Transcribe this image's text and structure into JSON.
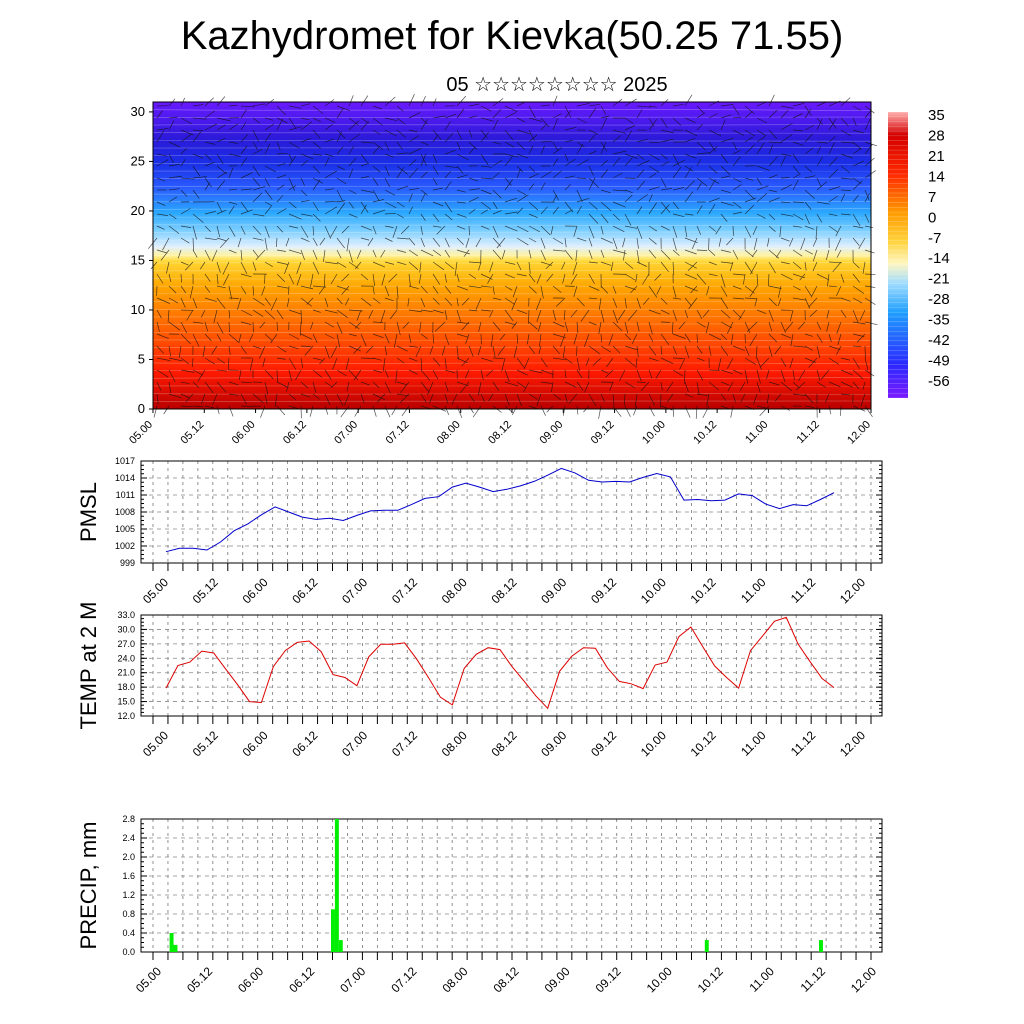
{
  "header": {
    "title": "Kazhydromet for Kievka(50.25 71.55)",
    "subtitle": "05 ☆☆☆☆☆☆☆☆ 2025"
  },
  "time_labels": [
    "05.00",
    "05.12",
    "06.00",
    "06.12",
    "07.00",
    "07.12",
    "08.00",
    "08.12",
    "09.00",
    "09.12",
    "10.00",
    "10.12",
    "11.00",
    "11.12",
    "12.00"
  ],
  "chart_data": [
    {
      "type": "heatmap",
      "xlabel": "",
      "ylabel": "",
      "y_ticks": [
        0,
        5,
        10,
        15,
        20,
        25,
        30
      ],
      "ylim": [
        0,
        31
      ],
      "colorbar_labels": [
        "35",
        "28",
        "21",
        "14",
        "7",
        "0",
        "-7",
        "-14",
        "-21",
        "-28",
        "-35",
        "-42",
        "-49",
        "-56"
      ],
      "colors": {
        "warm": "#ff0000",
        "mid": "#ffee55",
        "cold": "#1a33ff",
        "top": "#7a1aff"
      }
    },
    {
      "type": "line",
      "ylabel": "PMSL",
      "y_ticks": [
        "999",
        "1002",
        "1005",
        "1008",
        "1011",
        "1014",
        "1017"
      ],
      "ylim": [
        999,
        1017
      ],
      "series": [
        {
          "color": "#0000cc",
          "values": [
            1001.0,
            1001.6,
            1001.6,
            1001.3,
            1002.7,
            1004.7,
            1005.9,
            1007.5,
            1008.9,
            1008.0,
            1007.1,
            1006.7,
            1006.9,
            1006.5,
            1007.4,
            1008.2,
            1008.3,
            1008.3,
            1009.3,
            1010.4,
            1010.7,
            1012.4,
            1013.1,
            1012.4,
            1011.6,
            1012.0,
            1012.6,
            1013.4,
            1014.5,
            1015.7,
            1014.9,
            1013.6,
            1013.3,
            1013.4,
            1013.3,
            1014.1,
            1014.8,
            1014.2,
            1010.1,
            1010.2,
            1010.0,
            1010.1,
            1011.2,
            1010.9,
            1009.4,
            1008.6,
            1009.3,
            1009.1,
            1010.2,
            1011.4
          ]
        }
      ]
    },
    {
      "type": "line",
      "ylabel": "TEMP at 2 M",
      "y_ticks": [
        "12.0",
        "15.0",
        "18.0",
        "21.0",
        "24.0",
        "27.0",
        "30.0",
        "33.0"
      ],
      "ylim": [
        12,
        33
      ],
      "series": [
        {
          "color": "#dd0000",
          "values": [
            17.8,
            22.5,
            23.2,
            25.5,
            25.1,
            21.8,
            18.5,
            15.0,
            14.8,
            22.3,
            25.6,
            27.3,
            27.6,
            25.4,
            20.6,
            20.0,
            18.3,
            24.3,
            26.9,
            26.9,
            27.2,
            23.9,
            20.0,
            15.9,
            14.3,
            21.9,
            24.8,
            26.2,
            25.8,
            22.3,
            19.3,
            16.2,
            13.6,
            21.3,
            24.4,
            26.2,
            26.1,
            22.0,
            19.2,
            18.7,
            17.7,
            22.6,
            23.2,
            28.5,
            30.5,
            26.4,
            22.4,
            20.0,
            17.8,
            25.6,
            28.6,
            31.7,
            32.5,
            26.9,
            23.3,
            19.8,
            17.9
          ]
        }
      ]
    },
    {
      "type": "bar",
      "ylabel": "PRECIP, mm",
      "y_ticks": [
        "0.0",
        "0.4",
        "0.8",
        "1.2",
        "1.6",
        "2.0",
        "2.4",
        "2.8"
      ],
      "ylim": [
        0,
        2.8
      ],
      "series": [
        {
          "color": "#00ee00",
          "values": [
            0,
            0,
            0,
            0,
            0,
            0,
            0.4,
            0.15,
            0,
            0,
            0,
            0,
            0,
            0,
            0,
            0,
            0,
            0,
            0,
            0,
            0,
            0,
            0,
            0,
            0,
            0,
            0,
            0,
            0,
            0,
            0,
            0,
            0,
            0,
            0,
            0,
            0,
            0,
            0,
            0,
            0,
            0,
            0,
            0,
            0,
            0,
            0,
            0.9,
            2.8,
            0.25,
            0,
            0,
            0,
            0,
            0,
            0,
            0,
            0,
            0,
            0,
            0,
            0,
            0,
            0,
            0,
            0,
            0,
            0,
            0,
            0,
            0,
            0,
            0,
            0,
            0,
            0,
            0,
            0,
            0,
            0,
            0,
            0,
            0,
            0,
            0,
            0,
            0,
            0,
            0,
            0,
            0,
            0,
            0,
            0,
            0,
            0,
            0,
            0,
            0,
            0,
            0,
            0,
            0,
            0,
            0,
            0,
            0,
            0,
            0,
            0,
            0,
            0,
            0,
            0,
            0,
            0,
            0,
            0,
            0,
            0,
            0,
            0,
            0,
            0,
            0,
            0,
            0,
            0,
            0,
            0,
            0,
            0,
            0,
            0,
            0,
            0,
            0,
            0,
            0,
            0,
            0,
            0,
            0.25,
            0,
            0,
            0,
            0,
            0,
            0,
            0,
            0,
            0,
            0,
            0,
            0,
            0,
            0,
            0,
            0,
            0,
            0,
            0,
            0,
            0,
            0,
            0,
            0,
            0,
            0,
            0,
            0,
            0.25,
            0,
            0,
            0,
            0,
            0,
            0,
            0,
            0,
            0,
            0,
            0,
            0,
            0,
            0
          ]
        }
      ]
    }
  ]
}
